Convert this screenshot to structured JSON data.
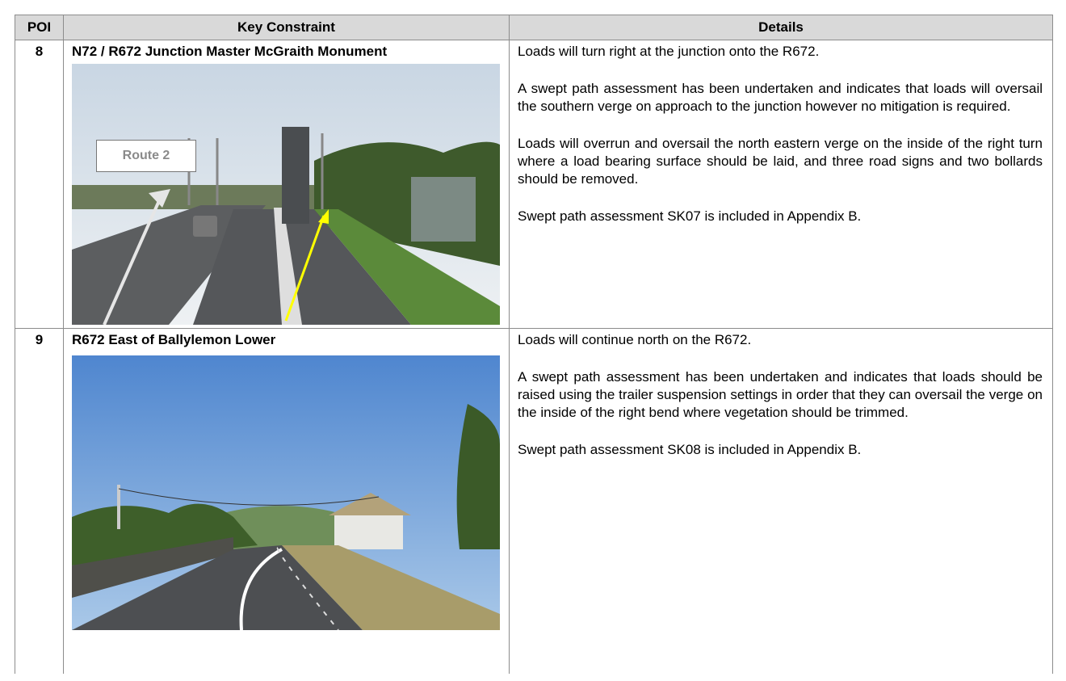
{
  "table": {
    "header": [
      "POI",
      "Key Constraint",
      "Details"
    ],
    "rows": [
      {
        "poi": "8",
        "constraint": "N72 / R672 Junction Master McGraith Monument",
        "image_label": "Route 2",
        "details": [
          "Loads will turn right at the junction onto the R672.",
          "A swept path assessment has been undertaken and indicates that loads will oversail the southern verge on approach to the junction however no mitigation is required.",
          "Loads will overrun and oversail the north eastern verge on the inside of the right turn where a load bearing surface should be laid, and three road signs and two bollards should be removed.",
          "Swept path assessment SK07 is included in Appendix B."
        ]
      },
      {
        "poi": "9",
        "constraint": "R672 East of Ballylemon Lower",
        "details": [
          "Loads will continue north on the R672.",
          "A swept path assessment has been undertaken and indicates that loads should be raised using the trailer suspension settings in order that they can oversail the verge on the inside of the right bend where vegetation should be trimmed.",
          "Swept path assessment SK08 is included in Appendix B."
        ]
      }
    ]
  }
}
